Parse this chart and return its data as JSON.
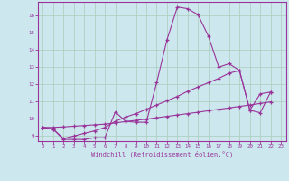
{
  "bg_color": "#cce8ee",
  "line_color": "#993399",
  "grid_color": "#aaccbb",
  "xlim": [
    -0.5,
    23.5
  ],
  "ylim": [
    8.7,
    16.8
  ],
  "xticks": [
    0,
    1,
    2,
    3,
    4,
    5,
    6,
    7,
    8,
    9,
    10,
    11,
    12,
    13,
    14,
    15,
    16,
    17,
    18,
    19,
    20,
    21,
    22,
    23
  ],
  "yticks": [
    9,
    10,
    11,
    12,
    13,
    14,
    15,
    16
  ],
  "xlabel": "Windchill (Refroidissement éolien,°C)",
  "x": [
    0,
    1,
    2,
    3,
    4,
    5,
    6,
    7,
    8,
    9,
    10,
    11,
    12,
    13,
    14,
    15,
    16,
    17,
    18,
    19,
    20,
    21,
    22
  ],
  "s1": [
    9.5,
    9.4,
    8.8,
    8.8,
    8.8,
    8.9,
    8.9,
    10.4,
    9.85,
    9.8,
    9.8,
    12.1,
    14.6,
    16.5,
    16.4,
    16.05,
    14.8,
    13.0,
    13.2,
    12.8,
    10.5,
    10.35,
    11.55
  ],
  "s2": [
    9.5,
    9.4,
    8.85,
    9.0,
    9.15,
    9.3,
    9.5,
    9.85,
    10.1,
    10.3,
    10.55,
    10.8,
    11.05,
    11.3,
    11.6,
    11.85,
    12.1,
    12.35,
    12.65,
    12.8,
    10.5,
    11.45,
    11.55
  ],
  "s3": [
    9.5,
    9.5,
    9.53,
    9.57,
    9.61,
    9.65,
    9.69,
    9.76,
    9.84,
    9.91,
    9.98,
    10.06,
    10.14,
    10.22,
    10.3,
    10.38,
    10.47,
    10.55,
    10.63,
    10.72,
    10.8,
    10.89,
    10.98
  ]
}
